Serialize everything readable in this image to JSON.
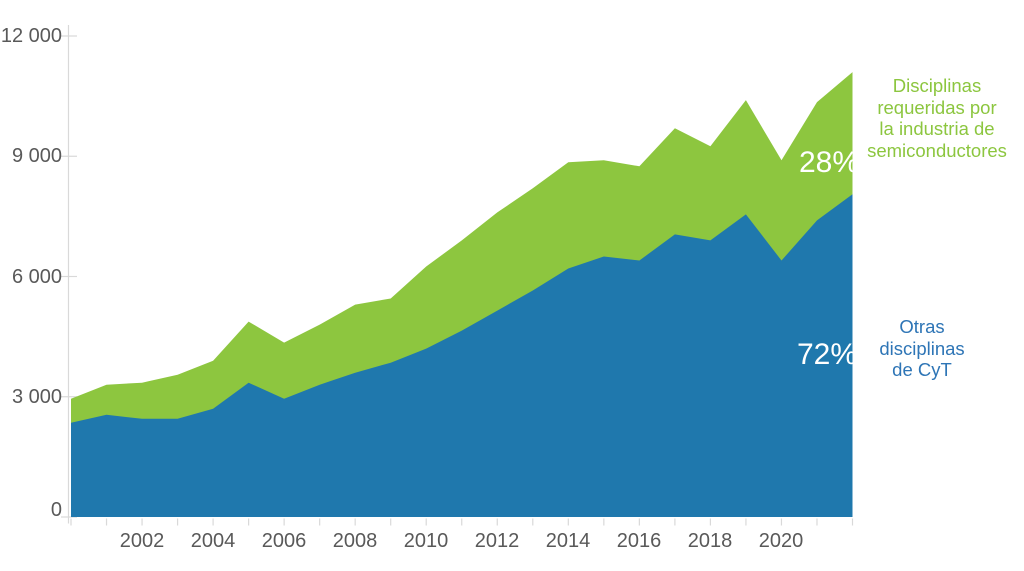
{
  "chart_data": {
    "type": "area",
    "stacked": true,
    "x": [
      2000,
      2001,
      2002,
      2003,
      2004,
      2005,
      2006,
      2007,
      2008,
      2009,
      2010,
      2011,
      2012,
      2013,
      2014,
      2015,
      2016,
      2017,
      2018,
      2019,
      2020,
      2021,
      2022
    ],
    "series": [
      {
        "name": "Otras disciplinas de CyT",
        "share_label": "72%",
        "color": "#1F78AD",
        "values": [
          2350,
          2550,
          2450,
          2450,
          2700,
          3350,
          2950,
          3300,
          3600,
          3850,
          4200,
          4650,
          5150,
          5650,
          6200,
          6500,
          6400,
          7050,
          6900,
          7550,
          6400,
          7400,
          8050
        ]
      },
      {
        "name": "Disciplinas requeridas por la industria de semiconductores",
        "share_label": "28%",
        "color": "#8DC63F",
        "values": [
          600,
          750,
          900,
          1100,
          1200,
          1525,
          1400,
          1500,
          1700,
          1600,
          2050,
          2250,
          2450,
          2550,
          2650,
          2400,
          2350,
          2650,
          2350,
          2850,
          2500,
          2950,
          3050
        ]
      }
    ],
    "ylim": [
      0,
      12000
    ],
    "yticks": [
      0,
      3000,
      6000,
      9000,
      12000
    ],
    "ytick_labels": [
      "0",
      "3 000",
      "6 000",
      "9 000",
      "12 000"
    ],
    "xticks": [
      2002,
      2004,
      2006,
      2008,
      2010,
      2012,
      2014,
      2016,
      2018,
      2020
    ],
    "xtick_labels": [
      "2002",
      "2004",
      "2006",
      "2008",
      "2010",
      "2012",
      "2014",
      "2016",
      "2018",
      "2020"
    ],
    "grid": false,
    "legend_position": "right"
  },
  "labels": {
    "green_legend_lines": [
      "Disciplinas",
      "requeridas por",
      "la industria de",
      "semiconductores"
    ],
    "blue_legend_lines": [
      "Otras",
      "disciplinas",
      "de CyT"
    ]
  },
  "colors": {
    "blue_area": "#1F78AD",
    "green_area": "#8DC63F",
    "blue_text": "#2E75B6",
    "green_text": "#8CC63F",
    "axis_text": "#595959",
    "tick_line": "#D9D9D9",
    "pct_text": "#FFFFFF"
  }
}
